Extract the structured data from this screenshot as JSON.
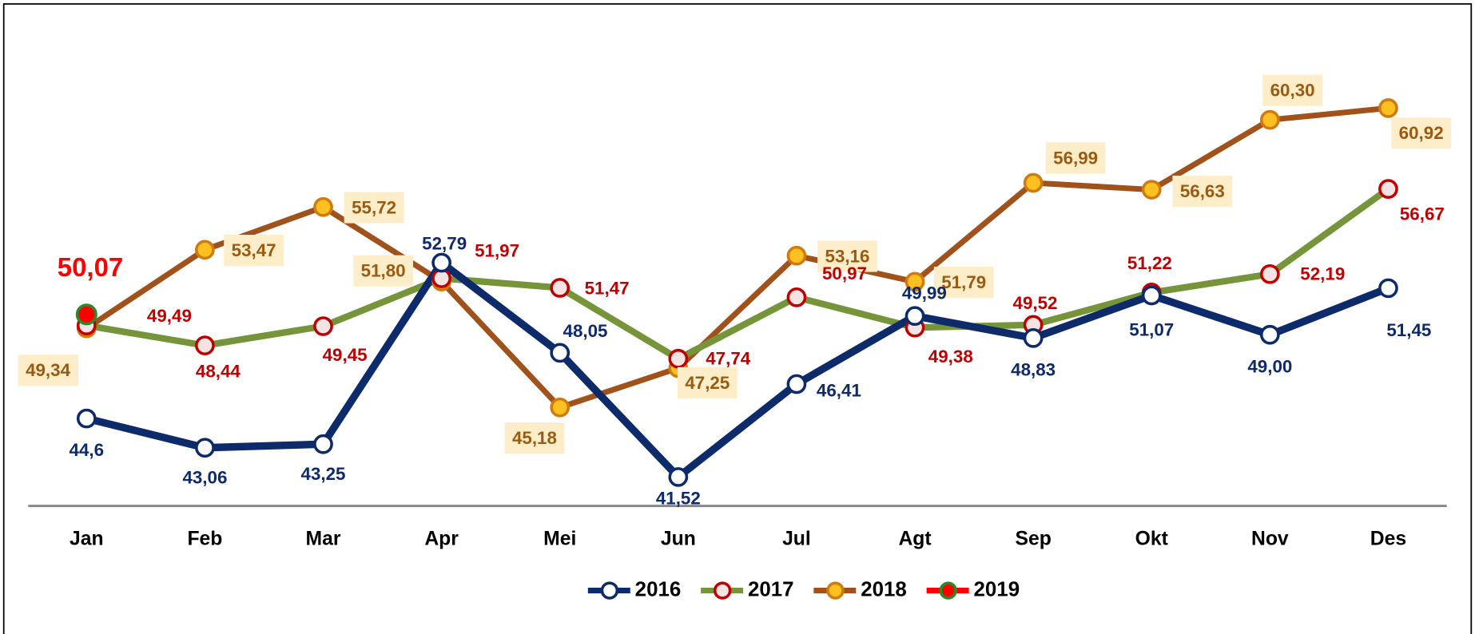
{
  "chart_data": {
    "type": "line",
    "categories": [
      "Jan",
      "Feb",
      "Mar",
      "Apr",
      "Mei",
      "Jun",
      "Jul",
      "Agt",
      "Sep",
      "Okt",
      "Nov",
      "Des"
    ],
    "ylim": [
      40,
      66
    ],
    "series": [
      {
        "name": "2016",
        "color": "#0d2a6b",
        "marker_fill": "#ffffff",
        "marker_edge": "#0d2a6b",
        "values": [
          44.6,
          43.06,
          43.25,
          52.79,
          48.05,
          41.52,
          46.41,
          49.99,
          48.83,
          51.07,
          49.0,
          51.45
        ],
        "value_labels": [
          "44,6",
          "43,06",
          "43,25",
          "52,79",
          "48,05",
          "41,52",
          "46,41",
          "49,99",
          "48,83",
          "51,07",
          "49,00",
          "51,45"
        ]
      },
      {
        "name": "2017",
        "color": "#76953a",
        "marker_fill": "#f4e3e3",
        "marker_edge": "#c00000",
        "values": [
          49.49,
          48.44,
          49.45,
          51.97,
          51.47,
          47.74,
          50.97,
          49.38,
          49.52,
          51.22,
          52.19,
          56.67
        ],
        "value_labels": [
          "49,49",
          "48,44",
          "49,45",
          "51,97",
          "51,47",
          "47,74",
          "50,97",
          "49,38",
          "49,52",
          "51,22",
          "52,19",
          "56,67"
        ]
      },
      {
        "name": "2018",
        "color": "#a0521a",
        "marker_fill": "#fcc020",
        "marker_edge": "#d07a10",
        "values": [
          49.34,
          53.47,
          55.72,
          51.8,
          45.18,
          47.25,
          53.16,
          51.79,
          56.99,
          56.63,
          60.3,
          60.92
        ],
        "value_labels": [
          "49,34",
          "53,47",
          "55,72",
          "51,80",
          "45,18",
          "47,25",
          "53,16",
          "51,79",
          "56,99",
          "56,63",
          "60,30",
          "60,92"
        ]
      },
      {
        "name": "2019",
        "color": "#ff0000",
        "marker_fill": "#ff0000",
        "marker_edge": "#2a8a2a",
        "values": [
          50.07,
          null,
          null,
          null,
          null,
          null,
          null,
          null,
          null,
          null,
          null,
          null
        ],
        "value_labels": [
          "50,07",
          null,
          null,
          null,
          null,
          null,
          null,
          null,
          null,
          null,
          null,
          null
        ]
      }
    ]
  }
}
